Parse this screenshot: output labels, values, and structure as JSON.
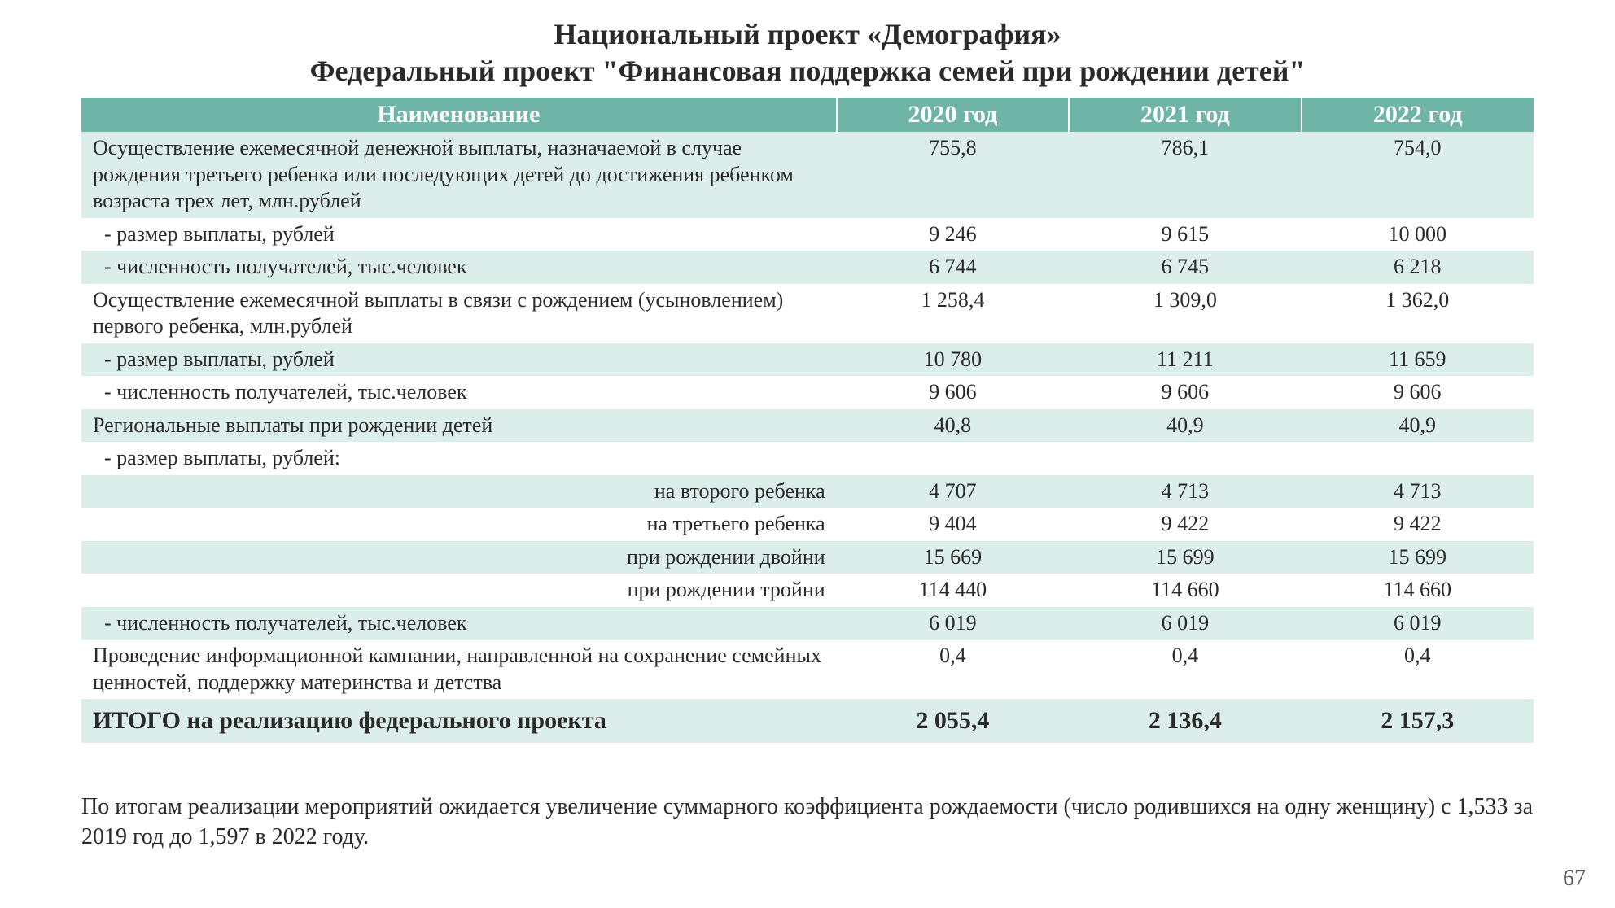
{
  "header": {
    "title1": "Национальный проект «Демография»",
    "title2": "Федеральный проект \"Финансовая поддержка семей при рождении детей\""
  },
  "table": {
    "columns": [
      "Наименование",
      "2020 год",
      "2021 год",
      "2022 год"
    ],
    "rows": [
      {
        "shade": true,
        "align": "left",
        "indent": false,
        "bold": false,
        "label": "Осуществление ежемесячной денежной выплаты, назначаемой в случае рождения третьего ребенка или последующих детей до достижения ребенком возраста трех лет, млн.рублей",
        "v": [
          "755,8",
          "786,1",
          "754,0"
        ]
      },
      {
        "shade": false,
        "align": "left",
        "indent": true,
        "bold": false,
        "label": " - размер выплаты, рублей",
        "v": [
          "9 246",
          "9 615",
          "10 000"
        ]
      },
      {
        "shade": true,
        "align": "left",
        "indent": true,
        "bold": false,
        "label": " - численность получателей, тыс.человек",
        "v": [
          "6 744",
          "6 745",
          "6 218"
        ]
      },
      {
        "shade": false,
        "align": "left",
        "indent": false,
        "bold": false,
        "label": "Осуществление ежемесячной выплаты в связи с рождением (усыновлением) первого ребенка, млн.рублей",
        "v": [
          "1 258,4",
          "1 309,0",
          "1 362,0"
        ]
      },
      {
        "shade": true,
        "align": "left",
        "indent": true,
        "bold": false,
        "label": " - размер выплаты, рублей",
        "v": [
          "10 780",
          "11 211",
          "11 659"
        ]
      },
      {
        "shade": false,
        "align": "left",
        "indent": true,
        "bold": false,
        "label": " - численность получателей, тыс.человек",
        "v": [
          "9 606",
          "9 606",
          "9 606"
        ]
      },
      {
        "shade": true,
        "align": "left",
        "indent": false,
        "bold": false,
        "label": "Региональные выплаты при рождении детей",
        "v": [
          "40,8",
          "40,9",
          "40,9"
        ]
      },
      {
        "shade": false,
        "align": "left",
        "indent": true,
        "bold": false,
        "label": " - размер выплаты, рублей:",
        "v": [
          "",
          "",
          ""
        ]
      },
      {
        "shade": true,
        "align": "right",
        "indent": false,
        "bold": false,
        "label": "на второго ребенка",
        "v": [
          "4 707",
          "4 713",
          "4 713"
        ]
      },
      {
        "shade": false,
        "align": "right",
        "indent": false,
        "bold": false,
        "label": "на третьего ребенка",
        "v": [
          "9 404",
          "9 422",
          "9 422"
        ]
      },
      {
        "shade": true,
        "align": "right",
        "indent": false,
        "bold": false,
        "label": "при рождении двойни",
        "v": [
          "15 669",
          "15 699",
          "15 699"
        ]
      },
      {
        "shade": false,
        "align": "right",
        "indent": false,
        "bold": false,
        "label": "при рождении тройни",
        "v": [
          "114 440",
          "114 660",
          "114 660"
        ]
      },
      {
        "shade": true,
        "align": "left",
        "indent": true,
        "bold": false,
        "label": " - численность получателей, тыс.человек",
        "v": [
          "6 019",
          "6 019",
          "6 019"
        ]
      },
      {
        "shade": false,
        "align": "left",
        "indent": false,
        "bold": false,
        "label": "Проведение информационной кампании, направленной на сохранение семейных ценностей, поддержку материнства и детства",
        "v": [
          "0,4",
          "0,4",
          "0,4"
        ]
      },
      {
        "shade": true,
        "align": "left",
        "indent": false,
        "bold": true,
        "label": "ИТОГО на реализацию федерального проекта",
        "v": [
          "2 055,4",
          "2 136,4",
          "2 157,3"
        ]
      }
    ]
  },
  "footnote": "По итогам реализации мероприятий ожидается увеличение суммарного коэффициента рождаемости (число родившихся на одну женщину) с 1,533 за 2019 год до 1,597 в 2022 году.",
  "page_number": "67",
  "style": {
    "header_bg": "#6fb5a7",
    "header_fg": "#ffffff",
    "shade_bg": "#dceee9",
    "plain_bg": "#ffffff",
    "text_color": "#2a2a2a",
    "title_fontsize": 36,
    "header_fontsize": 30,
    "body_fontsize": 26,
    "total_fontsize": 30,
    "footnote_fontsize": 28
  }
}
